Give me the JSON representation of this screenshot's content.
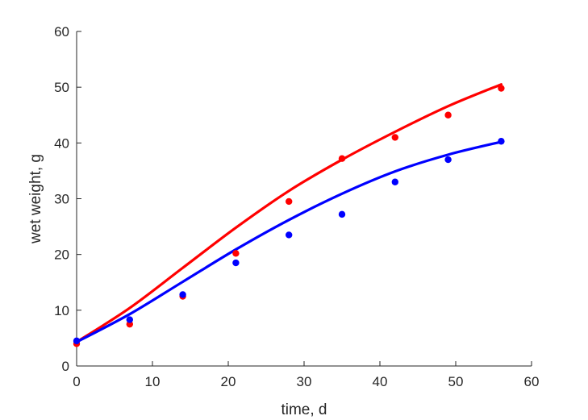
{
  "chart_data": {
    "type": "scatter",
    "title": "",
    "xlabel": "time, d",
    "ylabel": "wet weight, g",
    "xlim": [
      0,
      60
    ],
    "ylim": [
      0,
      60
    ],
    "xticks": [
      0,
      10,
      20,
      30,
      40,
      50,
      60
    ],
    "yticks": [
      0,
      10,
      20,
      30,
      40,
      50,
      60
    ],
    "grid": false,
    "series": [
      {
        "color": "#ff0000",
        "points": {
          "x": [
            0,
            7,
            14,
            21,
            28,
            35,
            42,
            49,
            56
          ],
          "y": [
            4.0,
            7.5,
            12.5,
            20.2,
            29.5,
            37.2,
            41.0,
            45.0,
            49.8
          ]
        },
        "fit": {
          "x": [
            0,
            7,
            14,
            21,
            28,
            35,
            42,
            49,
            56
          ],
          "y": [
            4.3,
            10.4,
            17.6,
            24.8,
            31.4,
            37.0,
            42.0,
            46.6,
            50.5
          ]
        }
      },
      {
        "color": "#0000ff",
        "points": {
          "x": [
            0,
            7,
            14,
            21,
            28,
            35,
            42,
            49,
            56
          ],
          "y": [
            4.5,
            8.3,
            12.8,
            18.5,
            23.5,
            27.2,
            33.0,
            37.0,
            40.3
          ]
        },
        "fit": {
          "x": [
            0,
            7,
            14,
            21,
            28,
            35,
            42,
            49,
            56
          ],
          "y": [
            4.3,
            9.3,
            15.1,
            20.9,
            26.2,
            30.9,
            34.9,
            37.9,
            40.2
          ]
        }
      }
    ]
  }
}
